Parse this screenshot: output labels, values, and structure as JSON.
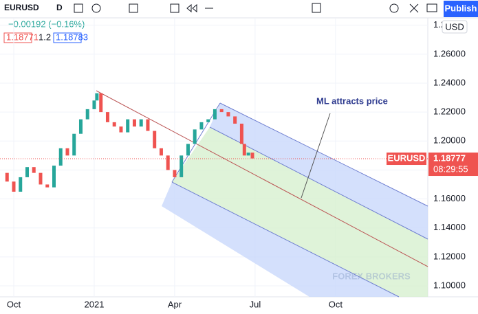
{
  "toolbar": {
    "symbol": "EURUSD",
    "interval": "D",
    "publish": "Publish"
  },
  "legend": {
    "change": "−0.00192 (−0.16%)",
    "bid": "1.18771",
    "spread": "1.2",
    "ask": "1.18783"
  },
  "chart_data": {
    "type": "candlestick",
    "x": [
      -0.5,
      -0.25,
      0,
      0.25,
      0.5,
      0.75,
      1,
      1.25,
      1.5,
      1.75,
      2,
      2.25,
      2.5,
      2.75,
      3,
      3.1,
      3.25,
      3.5,
      3.75,
      4,
      4.25,
      4.5,
      4.75,
      5,
      5.25,
      5.5,
      5.75,
      6,
      6.25,
      6.5,
      6.75,
      7,
      7.25,
      7.5,
      7.75,
      8,
      8.25,
      8.5,
      8.6,
      8.75,
      8.9
    ],
    "values": [
      1.178,
      1.172,
      1.165,
      1.175,
      1.182,
      1.178,
      1.17,
      1.168,
      1.183,
      1.195,
      1.19,
      1.205,
      1.215,
      1.222,
      1.228,
      1.233,
      1.22,
      1.213,
      1.21,
      1.206,
      1.215,
      1.21,
      1.215,
      1.207,
      1.195,
      1.19,
      1.18,
      1.175,
      1.19,
      1.198,
      1.208,
      1.213,
      1.215,
      1.222,
      1.22,
      1.217,
      1.212,
      1.198,
      1.19,
      1.192,
      1.188
    ],
    "up_color": "#26a69a",
    "down_color": "#ef5350",
    "xlim": [
      -0.513,
      15.44
    ],
    "xticks": [
      {
        "value": 0,
        "label": "Oct"
      },
      {
        "value": 3,
        "label": "2021"
      },
      {
        "value": 6,
        "label": "Apr"
      },
      {
        "value": 9,
        "label": "Jul"
      },
      {
        "value": 12,
        "label": "Oct"
      }
    ],
    "ylim": [
      1.0924,
      1.2974
    ],
    "yticks": [
      {
        "value": 1.28,
        "label": "1.28000"
      },
      {
        "value": 1.26,
        "label": "1.26000"
      },
      {
        "value": 1.24,
        "label": "1.24000"
      },
      {
        "value": 1.22,
        "label": "1.22000"
      },
      {
        "value": 1.2,
        "label": "1.20000"
      },
      {
        "value": 1.18,
        "label": "1.18000"
      },
      {
        "value": 1.16,
        "label": "1.16000"
      },
      {
        "value": 1.14,
        "label": "1.14000"
      },
      {
        "value": 1.12,
        "label": "1.12000"
      },
      {
        "value": 1.1,
        "label": "1.10000"
      }
    ],
    "currency": "USD",
    "last": {
      "symbol": "EURUSD",
      "value": 1.18777,
      "label": "1.18777",
      "countdown": "08:29:55"
    },
    "annotation": "ML attracts price",
    "watermark": "FOREX BROKERS"
  }
}
